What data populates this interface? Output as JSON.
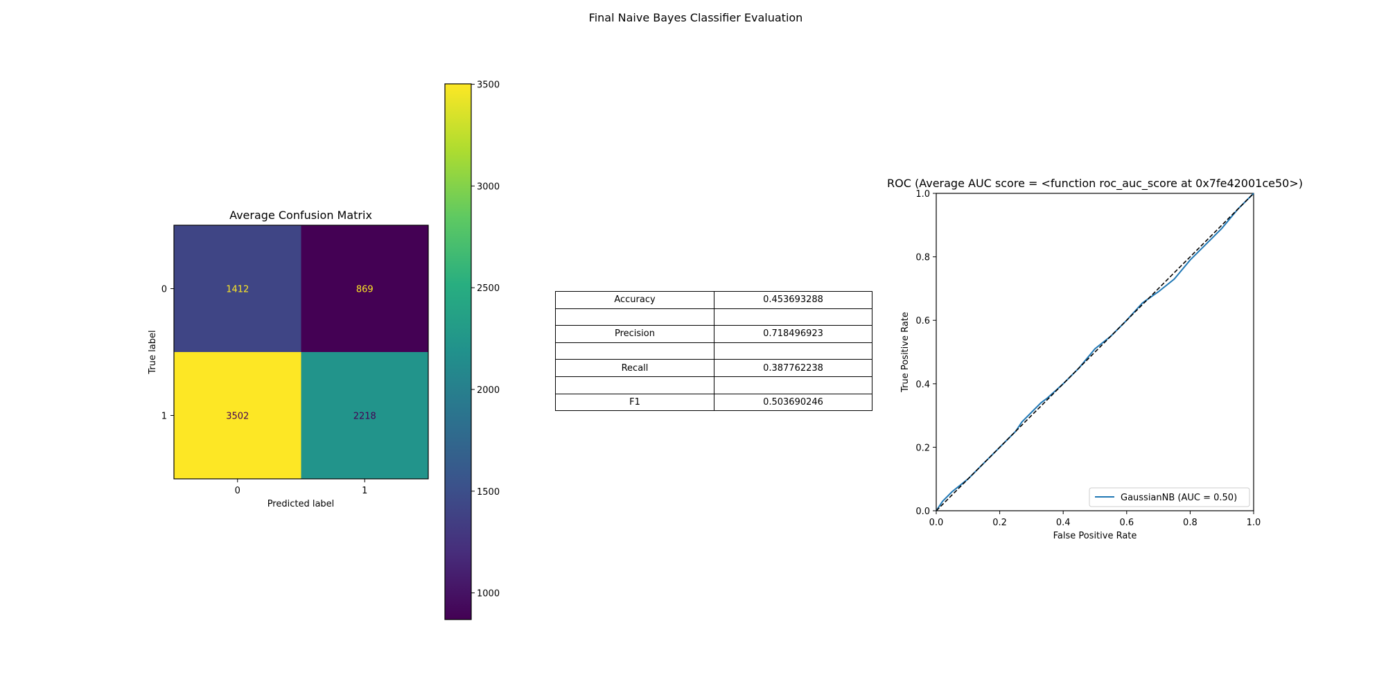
{
  "figure_title": "Final Naive Bayes Classifier Evaluation",
  "chart_data": [
    {
      "type": "heatmap",
      "title": "Average Confusion Matrix",
      "xlabel": "Predicted label",
      "ylabel": "True label",
      "x_ticks": [
        "0",
        "1"
      ],
      "y_ticks": [
        "0",
        "1"
      ],
      "values": [
        [
          1412,
          869
        ],
        [
          3502,
          2218
        ]
      ],
      "colormap": "viridis",
      "colorbar": {
        "range": [
          869,
          3502
        ],
        "ticks": [
          1000,
          1500,
          2000,
          2500,
          3000,
          3500
        ]
      },
      "text_colors": {
        "light": "#fde725",
        "dark": "#440154"
      }
    },
    {
      "type": "table",
      "rows": [
        [
          "Accuracy",
          "0.453693288"
        ],
        [
          "",
          ""
        ],
        [
          "Precision",
          "0.718496923"
        ],
        [
          "",
          ""
        ],
        [
          "Recall",
          "0.387762238"
        ],
        [
          "",
          ""
        ],
        [
          "F1",
          "0.503690246"
        ]
      ]
    },
    {
      "type": "line",
      "title": "ROC (Average AUC score = <function roc_auc_score at 0x7fe42001ce50>)",
      "xlabel": "False Positive Rate",
      "ylabel": "True Positive Rate",
      "xlim": [
        0,
        1
      ],
      "ylim": [
        0,
        1
      ],
      "x_ticks": [
        "0.0",
        "0.2",
        "0.4",
        "0.6",
        "0.8",
        "1.0"
      ],
      "y_ticks": [
        "0.0",
        "0.2",
        "0.4",
        "0.6",
        "0.8",
        "1.0"
      ],
      "grid": false,
      "legend_position": "lower-right",
      "series": [
        {
          "name": "GaussianNB (AUC = 0.50)",
          "color": "#1f77b4",
          "style": "solid",
          "x": [
            0,
            0.02,
            0.05,
            0.1,
            0.15,
            0.2,
            0.25,
            0.27,
            0.3,
            0.33,
            0.35,
            0.4,
            0.45,
            0.5,
            0.55,
            0.6,
            0.65,
            0.7,
            0.75,
            0.8,
            0.85,
            0.9,
            0.95,
            1.0
          ],
          "y": [
            0,
            0.03,
            0.06,
            0.1,
            0.15,
            0.2,
            0.25,
            0.28,
            0.31,
            0.34,
            0.355,
            0.4,
            0.45,
            0.51,
            0.55,
            0.6,
            0.655,
            0.69,
            0.73,
            0.79,
            0.84,
            0.89,
            0.95,
            1.0
          ]
        },
        {
          "color": "#000000",
          "style": "dashed",
          "x": [
            0,
            1
          ],
          "y": [
            0,
            1
          ]
        }
      ]
    }
  ]
}
